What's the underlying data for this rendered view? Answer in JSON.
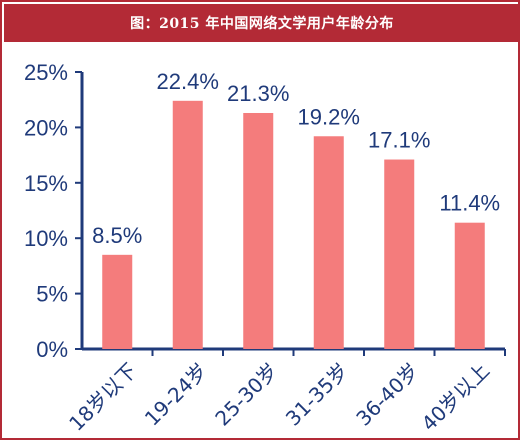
{
  "title": "图：2015 年中国网络文学用户年龄分布",
  "colors": {
    "header": "#b32a36",
    "bar": "#f47c7c",
    "text": "#1f3a7a",
    "axis": "#1f3a7a"
  },
  "chart_data": {
    "type": "bar",
    "title": "图：2015 年中国网络文学用户年龄分布",
    "categories": [
      "18岁以下",
      "19-24岁",
      "25-30岁",
      "31-35岁",
      "36-40岁",
      "40岁以上"
    ],
    "values": [
      8.5,
      22.4,
      21.3,
      19.2,
      17.1,
      11.4
    ],
    "value_labels": [
      "8.5%",
      "22.4%",
      "21.3%",
      "19.2%",
      "17.1%",
      "11.4%"
    ],
    "y_ticks": [
      "0%",
      "5%",
      "10%",
      "15%",
      "20%",
      "25%"
    ],
    "xlabel": "",
    "ylabel": "",
    "ylim": [
      0,
      25
    ],
    "grid": false,
    "legend": "none"
  }
}
